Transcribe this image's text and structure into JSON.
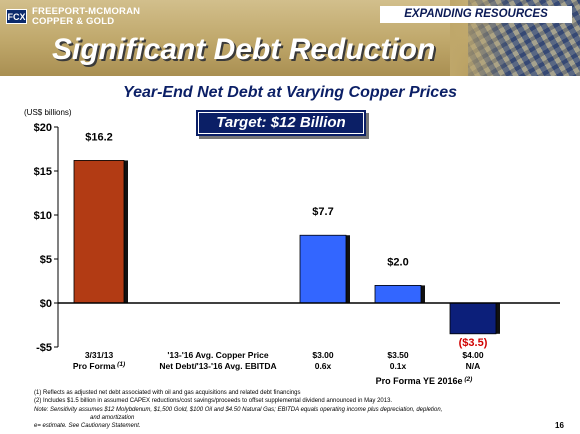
{
  "header": {
    "logo_mark": "FCX",
    "logo_line1": "FREEPORT-MCMORAN",
    "logo_line2": "COPPER & GOLD",
    "section_label": "EXPANDING RESOURCES",
    "title": "Significant Debt Reduction"
  },
  "subtitle": "Year-End Net Debt at Varying Copper Prices",
  "target_label": "Target: $12 Billion",
  "unit_label": "(US$ billions)",
  "chart_data": {
    "type": "bar",
    "title": "Year-End Net Debt at Varying Copper Prices",
    "ylabel": "(US$ billions)",
    "ylim": [
      -5,
      20
    ],
    "yticks": [
      20,
      15,
      10,
      5,
      0,
      -5
    ],
    "ytick_labels": [
      "$20",
      "$15",
      "$10",
      "$5",
      "$0",
      "-$5"
    ],
    "grid": false,
    "categories": [
      "3/31/13 Pro Forma (1)",
      "$3.00 0.6x",
      "$3.50 0.1x",
      "$4.00 N/A"
    ],
    "values": [
      16.2,
      7.7,
      2.0,
      -3.5
    ],
    "data_labels": [
      "$16.2",
      "$7.7",
      "$2.0",
      "($3.5)"
    ],
    "bar_colors": [
      "#b23b14",
      "#3366ff",
      "#3366ff",
      "#0c1f7a"
    ],
    "category_labels": [
      {
        "line1": "3/31/13",
        "line2": "Pro Forma",
        "sup": "(1)"
      },
      {
        "line1": "'13-'16 Avg. Copper Price",
        "line2": "Net Debt/'13-'16 Avg. EBITDA",
        "sup": ""
      },
      {
        "line1": "$3.00",
        "line2": "0.6x",
        "sup": ""
      },
      {
        "line1": "$3.50",
        "line2": "0.1x",
        "sup": ""
      },
      {
        "line1": "$4.00",
        "line2": "N/A",
        "sup": ""
      }
    ],
    "group_label": "Pro Forma YE 2016e",
    "group_label_sup": "(2)"
  },
  "footnotes": [
    "(1) Reflects as adjusted net debt associated with oil and gas acquisitions and related debt financings",
    "(2) Includes $1.5 billion in assumed CAPEX reductions/cost savings/proceeds to offset supplemental dividend announced in May 2013.",
    "Note: Sensitivity assumes $12 Molybdenum, $1,500 Gold, $100 Oil and $4.50 Natural Gas; EBITDA equals operating income plus depreciation, depletion,",
    "and amortization",
    "e= estimate. See Cautionary Statement."
  ],
  "page_number": "16"
}
